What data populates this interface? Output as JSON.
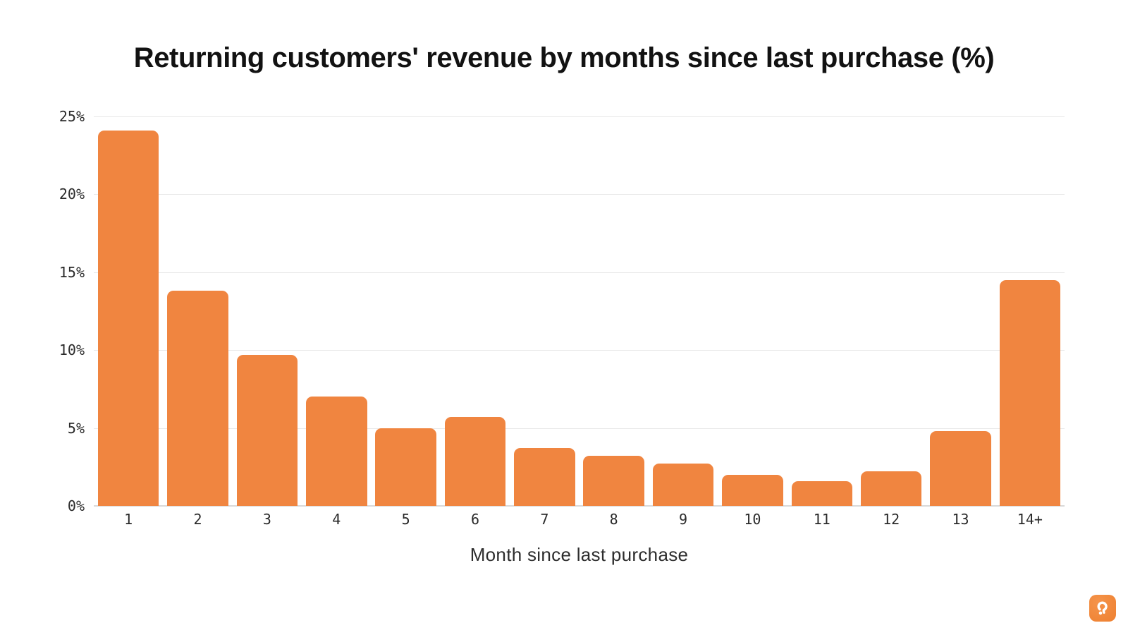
{
  "title": "Returning customers' revenue by months since last purchase (%)",
  "chart_data": {
    "type": "bar",
    "title": "Returning customers' revenue by months since last purchase (%)",
    "categories": [
      "1",
      "2",
      "3",
      "4",
      "5",
      "6",
      "7",
      "8",
      "9",
      "10",
      "11",
      "12",
      "13",
      "14+"
    ],
    "values": [
      24.1,
      13.8,
      9.7,
      7.0,
      5.0,
      5.7,
      3.7,
      3.2,
      2.7,
      2.0,
      1.6,
      2.2,
      4.8,
      14.5
    ],
    "xlabel": "Month since last purchase",
    "ylabel": "",
    "ylim": [
      0,
      25
    ],
    "yticks": [
      0,
      5,
      10,
      15,
      20,
      25
    ],
    "ytick_labels": [
      "0%",
      "5%",
      "10%",
      "15%",
      "20%",
      "25%"
    ],
    "grid": true,
    "legend": false,
    "bar_color": "#f08540"
  },
  "palette": {
    "bar": "#f08540",
    "gridline": "#e8e8e8",
    "axis_line": "#d9d9d9",
    "title_text": "#121212",
    "tick_text": "#2a2a2a",
    "logo_orange": "#ee8030"
  },
  "branding": {
    "logo": "smile-logo"
  }
}
